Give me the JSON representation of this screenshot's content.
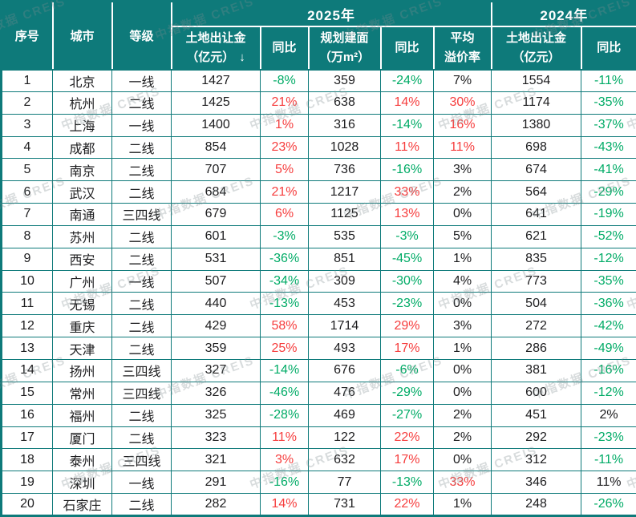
{
  "palette": {
    "header_bg": "#0e7a7a",
    "grid_border": "#0e7a7a",
    "positive_red": "#f63d3d",
    "negative_green": "#00ab66",
    "text_dark": "#1c1c1e",
    "header_text": "#ffffff",
    "watermark_gray": "rgba(125,138,142,0.30)"
  },
  "watermark": {
    "text": "中指数据 CREIS"
  },
  "header": {
    "col_no": "序号",
    "col_city": "城市",
    "col_tier": "等级",
    "group_2025": "2025年",
    "group_2024": "2024年",
    "fee_2025_line1": "土地出让金",
    "fee_2025_line2": "（亿元）",
    "sort_arrow": "↓",
    "yoy_fee_2025": "同比",
    "area_line1": "规划建面",
    "area_line2": "（万m²）",
    "yoy_area_2025": "同比",
    "premium_line1": "平均",
    "premium_line2": "溢价率",
    "fee_2024_line1": "土地出让金",
    "fee_2024_line2": "（亿元）",
    "yoy_fee_2024": "同比"
  },
  "chart_data": {
    "type": "table",
    "title": "",
    "column_groups": [
      {
        "label": "2025年",
        "span_columns": [
          "土地出让金（亿元）↓",
          "同比",
          "规划建面（万m²）",
          "同比",
          "平均溢价率"
        ]
      },
      {
        "label": "2024年",
        "span_columns": [
          "土地出让金（亿元）",
          "同比"
        ]
      }
    ],
    "columns": [
      "序号",
      "城市",
      "等级",
      "土地出让金（亿元）↓",
      "同比",
      "规划建面（万m²）",
      "同比",
      "平均溢价率",
      "土地出让金（亿元）",
      "同比"
    ],
    "color_legend": {
      "red": "increase / high premium",
      "green": "decrease",
      "dark": "neutral"
    },
    "rows": [
      {
        "no": "1",
        "city": "北京",
        "tier": "一线",
        "fee2025": "1427",
        "fee2025_yoy": {
          "v": "-8%",
          "c": "green"
        },
        "area2025": "359",
        "area2025_yoy": {
          "v": "-24%",
          "c": "green"
        },
        "premium": {
          "v": "7%",
          "c": "dark"
        },
        "fee2024": "1554",
        "fee2024_yoy": {
          "v": "-11%",
          "c": "green"
        }
      },
      {
        "no": "2",
        "city": "杭州",
        "tier": "二线",
        "fee2025": "1425",
        "fee2025_yoy": {
          "v": "21%",
          "c": "red"
        },
        "area2025": "638",
        "area2025_yoy": {
          "v": "14%",
          "c": "red"
        },
        "premium": {
          "v": "30%",
          "c": "red"
        },
        "fee2024": "1174",
        "fee2024_yoy": {
          "v": "-35%",
          "c": "green"
        }
      },
      {
        "no": "3",
        "city": "上海",
        "tier": "一线",
        "fee2025": "1400",
        "fee2025_yoy": {
          "v": "1%",
          "c": "red"
        },
        "area2025": "316",
        "area2025_yoy": {
          "v": "-14%",
          "c": "green"
        },
        "premium": {
          "v": "16%",
          "c": "red"
        },
        "fee2024": "1380",
        "fee2024_yoy": {
          "v": "-37%",
          "c": "green"
        }
      },
      {
        "no": "4",
        "city": "成都",
        "tier": "二线",
        "fee2025": "854",
        "fee2025_yoy": {
          "v": "23%",
          "c": "red"
        },
        "area2025": "1028",
        "area2025_yoy": {
          "v": "11%",
          "c": "red"
        },
        "premium": {
          "v": "11%",
          "c": "red"
        },
        "fee2024": "698",
        "fee2024_yoy": {
          "v": "-43%",
          "c": "green"
        }
      },
      {
        "no": "5",
        "city": "南京",
        "tier": "二线",
        "fee2025": "707",
        "fee2025_yoy": {
          "v": "5%",
          "c": "red"
        },
        "area2025": "736",
        "area2025_yoy": {
          "v": "-16%",
          "c": "green"
        },
        "premium": {
          "v": "3%",
          "c": "dark"
        },
        "fee2024": "674",
        "fee2024_yoy": {
          "v": "-41%",
          "c": "green"
        }
      },
      {
        "no": "6",
        "city": "武汉",
        "tier": "二线",
        "fee2025": "684",
        "fee2025_yoy": {
          "v": "21%",
          "c": "red"
        },
        "area2025": "1217",
        "area2025_yoy": {
          "v": "33%",
          "c": "red"
        },
        "premium": {
          "v": "2%",
          "c": "dark"
        },
        "fee2024": "564",
        "fee2024_yoy": {
          "v": "-29%",
          "c": "green"
        }
      },
      {
        "no": "7",
        "city": "南通",
        "tier": "三四线",
        "fee2025": "679",
        "fee2025_yoy": {
          "v": "6%",
          "c": "red"
        },
        "area2025": "1125",
        "area2025_yoy": {
          "v": "13%",
          "c": "red"
        },
        "premium": {
          "v": "0%",
          "c": "dark"
        },
        "fee2024": "641",
        "fee2024_yoy": {
          "v": "-19%",
          "c": "green"
        }
      },
      {
        "no": "8",
        "city": "苏州",
        "tier": "二线",
        "fee2025": "601",
        "fee2025_yoy": {
          "v": "-3%",
          "c": "green"
        },
        "area2025": "535",
        "area2025_yoy": {
          "v": "-3%",
          "c": "green"
        },
        "premium": {
          "v": "5%",
          "c": "dark"
        },
        "fee2024": "621",
        "fee2024_yoy": {
          "v": "-52%",
          "c": "green"
        }
      },
      {
        "no": "9",
        "city": "西安",
        "tier": "二线",
        "fee2025": "531",
        "fee2025_yoy": {
          "v": "-36%",
          "c": "green"
        },
        "area2025": "851",
        "area2025_yoy": {
          "v": "-45%",
          "c": "green"
        },
        "premium": {
          "v": "1%",
          "c": "dark"
        },
        "fee2024": "835",
        "fee2024_yoy": {
          "v": "-12%",
          "c": "green"
        }
      },
      {
        "no": "10",
        "city": "广州",
        "tier": "一线",
        "fee2025": "507",
        "fee2025_yoy": {
          "v": "-34%",
          "c": "green"
        },
        "area2025": "309",
        "area2025_yoy": {
          "v": "-30%",
          "c": "green"
        },
        "premium": {
          "v": "4%",
          "c": "dark"
        },
        "fee2024": "773",
        "fee2024_yoy": {
          "v": "-35%",
          "c": "green"
        }
      },
      {
        "no": "11",
        "city": "无锡",
        "tier": "二线",
        "fee2025": "440",
        "fee2025_yoy": {
          "v": "-13%",
          "c": "green"
        },
        "area2025": "453",
        "area2025_yoy": {
          "v": "-23%",
          "c": "green"
        },
        "premium": {
          "v": "0%",
          "c": "dark"
        },
        "fee2024": "504",
        "fee2024_yoy": {
          "v": "-36%",
          "c": "green"
        }
      },
      {
        "no": "12",
        "city": "重庆",
        "tier": "二线",
        "fee2025": "429",
        "fee2025_yoy": {
          "v": "58%",
          "c": "red"
        },
        "area2025": "1714",
        "area2025_yoy": {
          "v": "29%",
          "c": "red"
        },
        "premium": {
          "v": "3%",
          "c": "dark"
        },
        "fee2024": "272",
        "fee2024_yoy": {
          "v": "-42%",
          "c": "green"
        }
      },
      {
        "no": "13",
        "city": "天津",
        "tier": "二线",
        "fee2025": "359",
        "fee2025_yoy": {
          "v": "25%",
          "c": "red"
        },
        "area2025": "493",
        "area2025_yoy": {
          "v": "17%",
          "c": "red"
        },
        "premium": {
          "v": "1%",
          "c": "dark"
        },
        "fee2024": "286",
        "fee2024_yoy": {
          "v": "-49%",
          "c": "green"
        }
      },
      {
        "no": "14",
        "city": "扬州",
        "tier": "三四线",
        "fee2025": "327",
        "fee2025_yoy": {
          "v": "-14%",
          "c": "green"
        },
        "area2025": "676",
        "area2025_yoy": {
          "v": "-6%",
          "c": "green"
        },
        "premium": {
          "v": "0%",
          "c": "dark"
        },
        "fee2024": "381",
        "fee2024_yoy": {
          "v": "-16%",
          "c": "green"
        }
      },
      {
        "no": "15",
        "city": "常州",
        "tier": "三四线",
        "fee2025": "326",
        "fee2025_yoy": {
          "v": "-46%",
          "c": "green"
        },
        "area2025": "476",
        "area2025_yoy": {
          "v": "-29%",
          "c": "green"
        },
        "premium": {
          "v": "0%",
          "c": "dark"
        },
        "fee2024": "600",
        "fee2024_yoy": {
          "v": "-12%",
          "c": "green"
        }
      },
      {
        "no": "16",
        "city": "福州",
        "tier": "二线",
        "fee2025": "325",
        "fee2025_yoy": {
          "v": "-28%",
          "c": "green"
        },
        "area2025": "469",
        "area2025_yoy": {
          "v": "-27%",
          "c": "green"
        },
        "premium": {
          "v": "2%",
          "c": "dark"
        },
        "fee2024": "451",
        "fee2024_yoy": {
          "v": "2%",
          "c": "dark"
        }
      },
      {
        "no": "17",
        "city": "厦门",
        "tier": "二线",
        "fee2025": "323",
        "fee2025_yoy": {
          "v": "11%",
          "c": "red"
        },
        "area2025": "122",
        "area2025_yoy": {
          "v": "22%",
          "c": "red"
        },
        "premium": {
          "v": "2%",
          "c": "dark"
        },
        "fee2024": "292",
        "fee2024_yoy": {
          "v": "-23%",
          "c": "green"
        }
      },
      {
        "no": "18",
        "city": "泰州",
        "tier": "三四线",
        "fee2025": "321",
        "fee2025_yoy": {
          "v": "3%",
          "c": "red"
        },
        "area2025": "632",
        "area2025_yoy": {
          "v": "17%",
          "c": "red"
        },
        "premium": {
          "v": "0%",
          "c": "dark"
        },
        "fee2024": "312",
        "fee2024_yoy": {
          "v": "-11%",
          "c": "green"
        }
      },
      {
        "no": "19",
        "city": "深圳",
        "tier": "一线",
        "fee2025": "291",
        "fee2025_yoy": {
          "v": "-16%",
          "c": "green"
        },
        "area2025": "77",
        "area2025_yoy": {
          "v": "-13%",
          "c": "green"
        },
        "premium": {
          "v": "33%",
          "c": "red"
        },
        "fee2024": "346",
        "fee2024_yoy": {
          "v": "11%",
          "c": "dark"
        }
      },
      {
        "no": "20",
        "city": "石家庄",
        "tier": "二线",
        "fee2025": "282",
        "fee2025_yoy": {
          "v": "14%",
          "c": "red"
        },
        "area2025": "731",
        "area2025_yoy": {
          "v": "22%",
          "c": "red"
        },
        "premium": {
          "v": "1%",
          "c": "dark"
        },
        "fee2024": "248",
        "fee2024_yoy": {
          "v": "-26%",
          "c": "green"
        }
      }
    ]
  }
}
